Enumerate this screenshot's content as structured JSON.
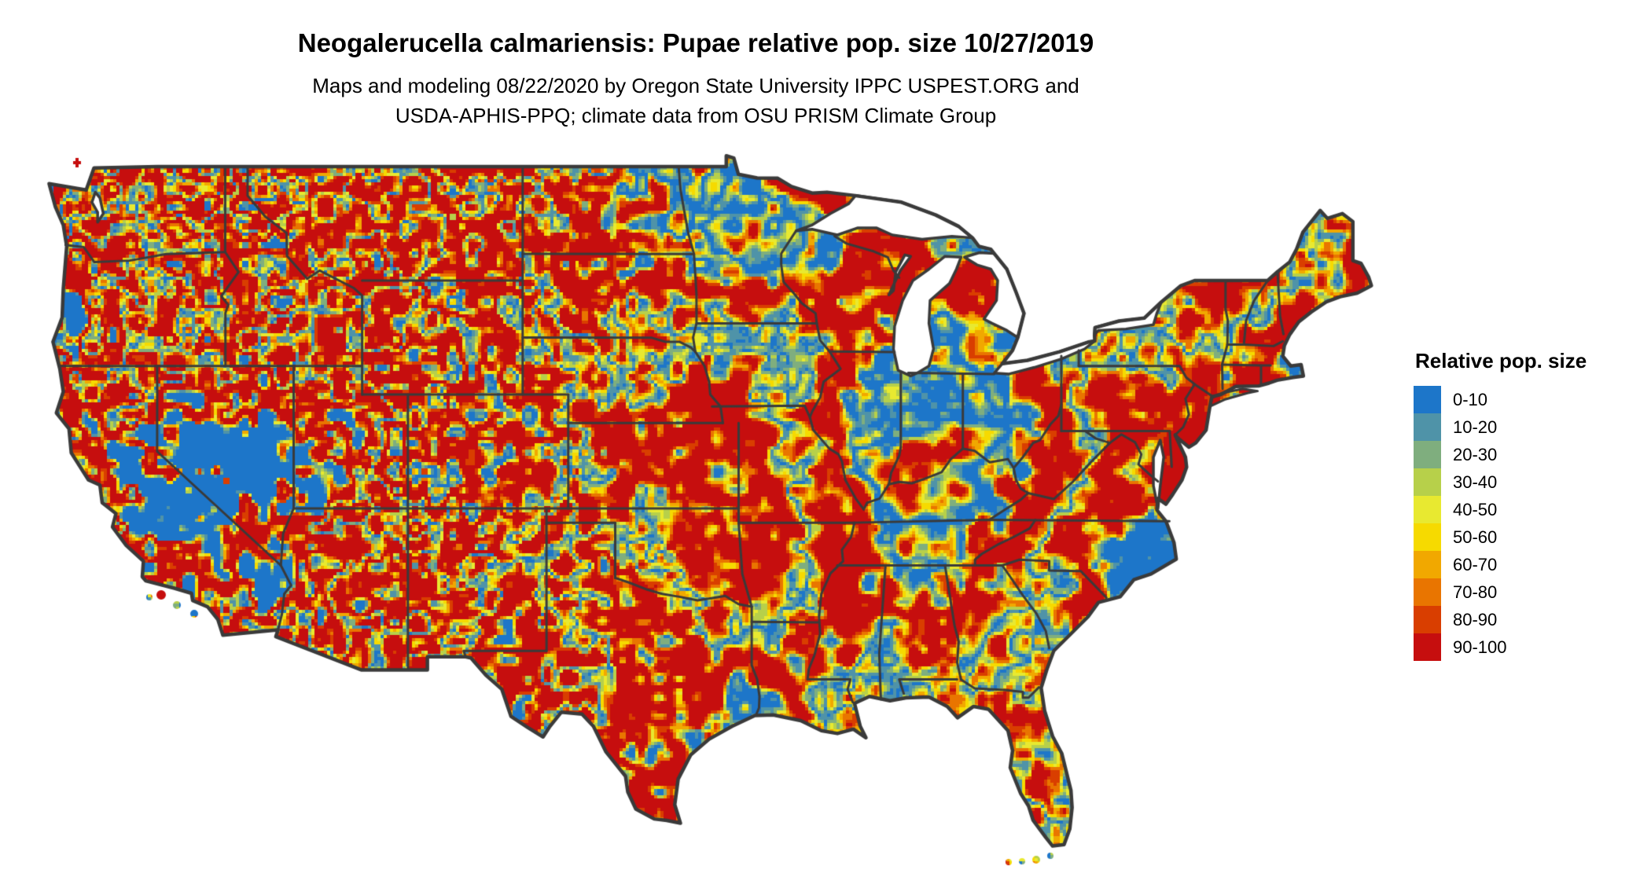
{
  "header": {
    "title": "Neogalerucella calmariensis: Pupae relative pop. size 10/27/2019",
    "subtitle_line1": "Maps and modeling 08/22/2020 by Oregon State University IPPC USPEST.ORG and",
    "subtitle_line2": "USDA-APHIS-PPQ; climate data from OSU PRISM Climate Group"
  },
  "legend": {
    "title": "Relative pop. size",
    "items": [
      {
        "label": "0-10",
        "color": "#1d76c9"
      },
      {
        "label": "10-20",
        "color": "#4f93a8"
      },
      {
        "label": "20-30",
        "color": "#7fae7e"
      },
      {
        "label": "30-40",
        "color": "#b7d04a"
      },
      {
        "label": "40-50",
        "color": "#e8e930"
      },
      {
        "label": "50-60",
        "color": "#f6da00"
      },
      {
        "label": "60-70",
        "color": "#f1a800"
      },
      {
        "label": "70-80",
        "color": "#e97500"
      },
      {
        "label": "80-90",
        "color": "#d93e00"
      },
      {
        "label": "90-100",
        "color": "#c60e0e"
      }
    ]
  },
  "map": {
    "border_color": "#3a3a3a",
    "water_color": "#ffffff",
    "land_base_color": "#1d76c9"
  }
}
